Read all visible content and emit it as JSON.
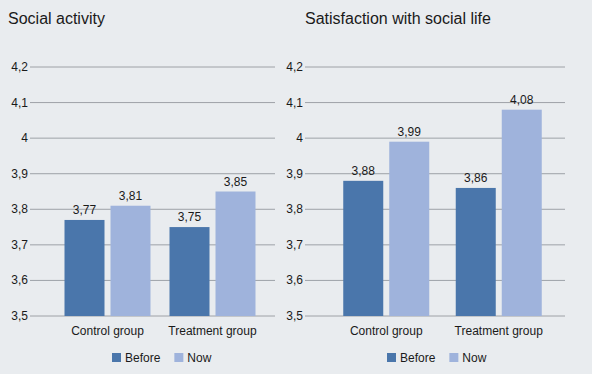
{
  "chart_data": [
    {
      "type": "bar",
      "title": "Social activity",
      "categories": [
        "Control group",
        "Treatment group"
      ],
      "series": [
        {
          "name": "Before",
          "color": "#4a76ab",
          "values": [
            3.77,
            3.75
          ],
          "value_labels": [
            "3,77",
            "3,75"
          ]
        },
        {
          "name": "Now",
          "color": "#9fb3dc",
          "values": [
            3.81,
            3.85
          ],
          "value_labels": [
            "3,81",
            "3,85"
          ]
        }
      ],
      "ylim": [
        3.5,
        4.2
      ],
      "yticks": [
        {
          "value": 3.5,
          "label": "3,5"
        },
        {
          "value": 3.6,
          "label": "3,6"
        },
        {
          "value": 3.7,
          "label": "3,7"
        },
        {
          "value": 3.8,
          "label": "3,8"
        },
        {
          "value": 3.9,
          "label": "3,9"
        },
        4,
        {
          "value": 4.1,
          "label": "4,1"
        },
        {
          "value": 4.2,
          "label": "4,2"
        }
      ],
      "grid": true,
      "legend": "bottom",
      "data_labels": true
    },
    {
      "type": "bar",
      "title": "Satisfaction with social life",
      "categories": [
        "Control group",
        "Treatment group"
      ],
      "series": [
        {
          "name": "Before",
          "color": "#4a76ab",
          "values": [
            3.88,
            3.86
          ],
          "value_labels": [
            "3,88",
            "3,86"
          ]
        },
        {
          "name": "Now",
          "color": "#9fb3dc",
          "values": [
            3.99,
            4.08
          ],
          "value_labels": [
            "3,99",
            "4,08"
          ]
        }
      ],
      "ylim": [
        3.5,
        4.2
      ],
      "yticks": [
        {
          "value": 3.5,
          "label": "3,5"
        },
        {
          "value": 3.6,
          "label": "3,6"
        },
        {
          "value": 3.7,
          "label": "3,7"
        },
        {
          "value": 3.8,
          "label": "3,8"
        },
        {
          "value": 3.9,
          "label": "3,9"
        },
        4,
        {
          "value": 4.1,
          "label": "4,1"
        },
        {
          "value": 4.2,
          "label": "4,2"
        }
      ],
      "grid": true,
      "legend": "bottom",
      "data_labels": true
    }
  ]
}
